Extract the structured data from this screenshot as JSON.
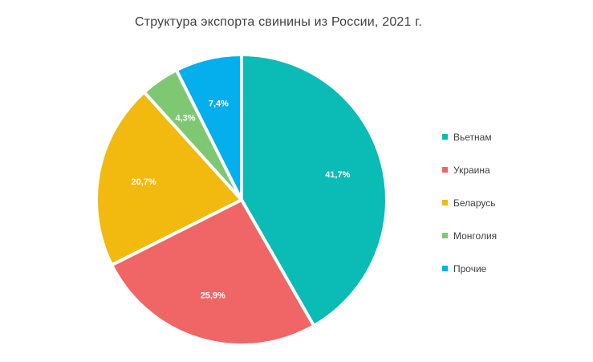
{
  "chart_data": {
    "type": "pie",
    "title": "Структура экспорта свинины из России, 2021 г.",
    "categories": [
      "Вьетнам",
      "Украина",
      "Беларусь",
      "Монголия",
      "Прочие"
    ],
    "values": [
      41.7,
      25.9,
      20.7,
      4.3,
      7.4
    ],
    "data_labels": [
      "41,7%",
      "25,9%",
      "20,7%",
      "4,3%",
      "7,4%"
    ],
    "colors": [
      "#0bbbb5",
      "#f06566",
      "#f2b90f",
      "#7fc873",
      "#05aeec"
    ],
    "start_angle_deg": 0,
    "direction": "clockwise",
    "legend_position": "right"
  },
  "legend": {
    "items": [
      {
        "label": "Вьетнам",
        "color": "#0bbbb5"
      },
      {
        "label": "Украина",
        "color": "#f06566"
      },
      {
        "label": "Беларусь",
        "color": "#f2b90f"
      },
      {
        "label": "Монголия",
        "color": "#7fc873"
      },
      {
        "label": "Прочие",
        "color": "#05aeec"
      }
    ]
  }
}
